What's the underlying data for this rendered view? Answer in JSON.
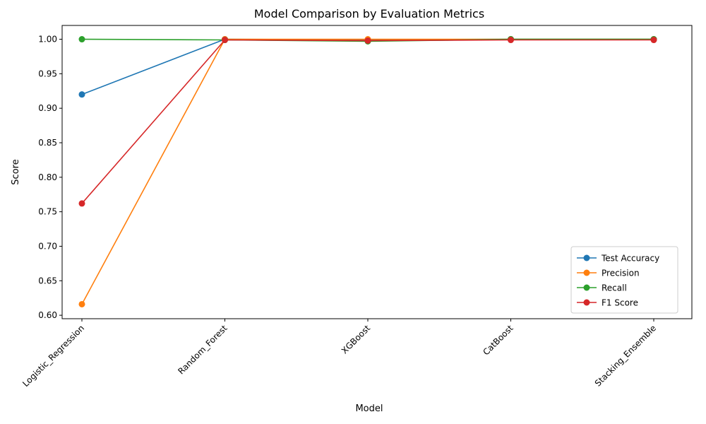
{
  "chart_data": {
    "type": "line",
    "title": "Model Comparison by Evaluation Metrics",
    "xlabel": "Model",
    "ylabel": "Score",
    "categories": [
      "Logistic_Regression",
      "Random_Forest",
      "XGBoost",
      "CatBoost",
      "Stacking_Ensemble"
    ],
    "ylim": [
      0.595,
      1.02
    ],
    "yticks": [
      "0.60",
      "0.65",
      "0.70",
      "0.75",
      "0.80",
      "0.85",
      "0.90",
      "0.95",
      "1.00"
    ],
    "grid": false,
    "legend_position": "lower-right",
    "series": [
      {
        "name": "Test Accuracy",
        "color": "#1f77b4",
        "values": [
          0.92,
          1.0,
          0.999,
          1.0,
          1.0
        ]
      },
      {
        "name": "Precision",
        "color": "#ff7f0e",
        "values": [
          0.616,
          1.0,
          1.0,
          1.0,
          1.0
        ]
      },
      {
        "name": "Recall",
        "color": "#2ca02c",
        "values": [
          1.0,
          0.999,
          0.997,
          1.0,
          1.0
        ]
      },
      {
        "name": "F1 Score",
        "color": "#d62728",
        "values": [
          0.762,
          0.999,
          0.998,
          0.999,
          0.999
        ]
      }
    ]
  }
}
